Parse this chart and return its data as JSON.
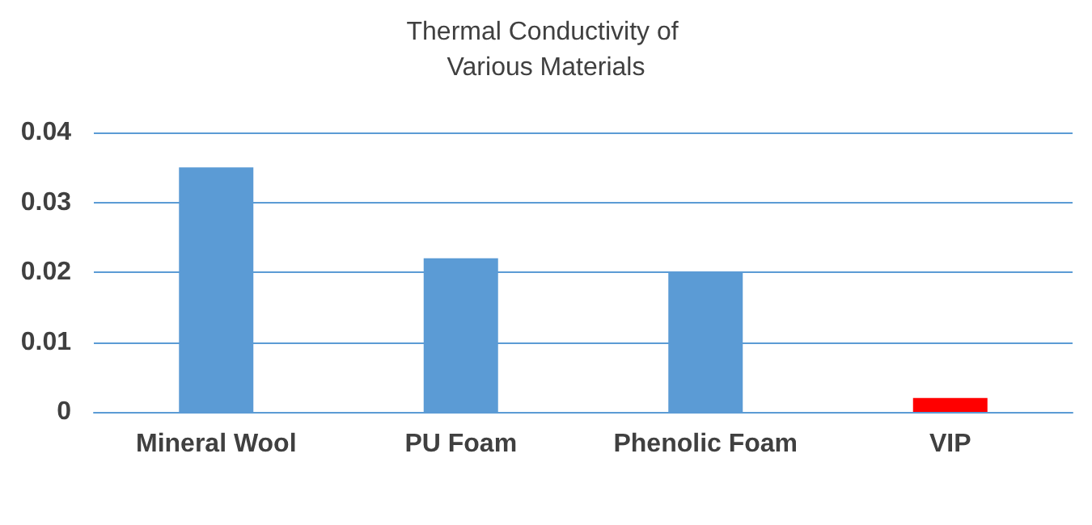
{
  "chart_data": {
    "type": "bar",
    "title": "Thermal Conductivity of Various Materials",
    "categories": [
      "Mineral Wool",
      "PU Foam",
      "Phenolic Foam",
      "VIP"
    ],
    "values": [
      0.035,
      0.022,
      0.02,
      0.002
    ],
    "colors": [
      "#5b9bd5",
      "#5b9bd5",
      "#5b9bd5",
      "#ff0000"
    ],
    "ylim": [
      0,
      0.04
    ],
    "yticks": [
      0,
      0.01,
      0.02,
      0.03,
      0.04
    ],
    "grid": "y"
  }
}
